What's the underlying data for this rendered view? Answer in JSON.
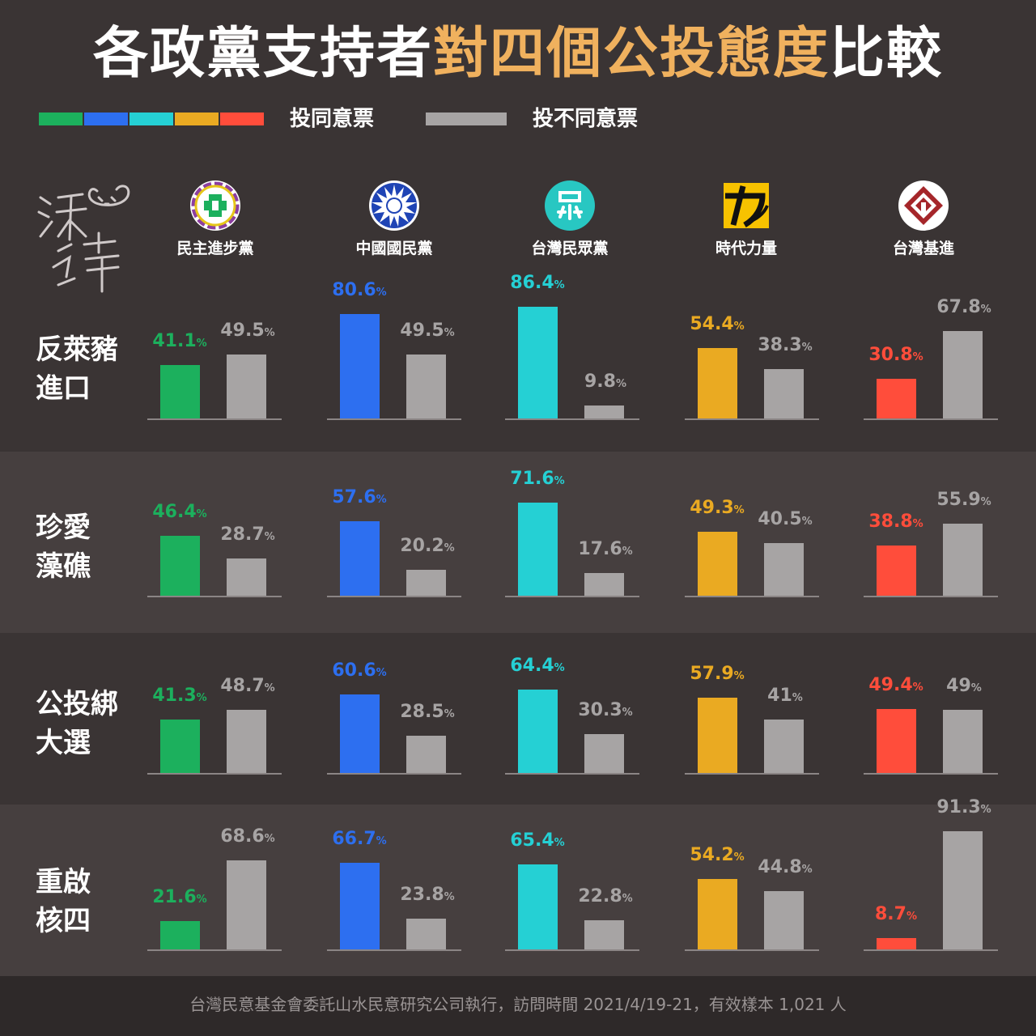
{
  "title": {
    "part1": "各政黨支持者",
    "part2": "對四個公投態度",
    "part3": "比較"
  },
  "legend": {
    "yes_label": "投同意票",
    "no_label": "投不同意票",
    "yes_colors": [
      "#1cb05d",
      "#2d6ff0",
      "#25d0d4",
      "#eaaa22",
      "#ff4d3b"
    ],
    "no_color": "#a7a4a4"
  },
  "watermark": "沃草",
  "footer": "台灣民意基金會委託山水民意研究公司執行，訪問時間 2021/4/19-21，有效樣本 1,021 人",
  "chart_data": {
    "type": "bar",
    "unit": "%",
    "parties": [
      {
        "name": "民主進步黨",
        "color": "#1cb05d",
        "logo": "dpp-logo"
      },
      {
        "name": "中國國民黨",
        "color": "#2d6ff0",
        "logo": "kmt-logo"
      },
      {
        "name": "台灣民眾黨",
        "color": "#25d0d4",
        "logo": "tpp-logo"
      },
      {
        "name": "時代力量",
        "color": "#eaaa22",
        "logo": "npp-logo"
      },
      {
        "name": "台灣基進",
        "color": "#ff4d3b",
        "logo": "tsp-logo"
      }
    ],
    "referendums": [
      {
        "label": [
          "反萊豬",
          "進口"
        ],
        "yes": [
          41.1,
          80.6,
          86.4,
          54.4,
          30.8
        ],
        "no": [
          49.5,
          49.5,
          9.8,
          38.3,
          67.8
        ]
      },
      {
        "label": [
          "珍愛",
          "藻礁"
        ],
        "yes": [
          46.4,
          57.6,
          71.6,
          49.3,
          38.8
        ],
        "no": [
          28.7,
          20.2,
          17.6,
          40.5,
          55.9
        ]
      },
      {
        "label": [
          "公投綁",
          "大選"
        ],
        "yes": [
          41.3,
          60.6,
          64.4,
          57.9,
          49.4
        ],
        "no": [
          48.7,
          28.5,
          30.3,
          41,
          49
        ]
      },
      {
        "label": [
          "重啟",
          "核四"
        ],
        "yes": [
          21.6,
          66.7,
          65.4,
          54.2,
          8.7
        ],
        "no": [
          68.6,
          23.8,
          22.8,
          44.8,
          91.3
        ]
      }
    ]
  }
}
